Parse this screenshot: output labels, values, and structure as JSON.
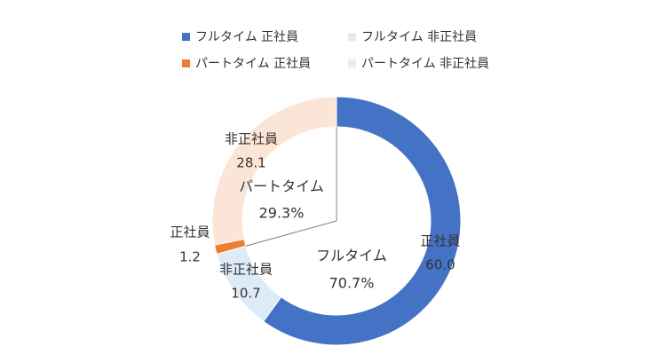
{
  "chart_data": {
    "type": "donut",
    "legend_position": "top",
    "legend": [
      {
        "label": "フルタイム 正社員",
        "color": "#4472C4"
      },
      {
        "label": "フルタイム 非正社員",
        "color": "#DEEBF7"
      },
      {
        "label": "パートタイム 正社員",
        "color": "#ED7D31"
      },
      {
        "label": "パートタイム 非正社員",
        "color": "#FBE5D6"
      }
    ],
    "outer_ring": [
      {
        "name": "フルタイム 正社員",
        "category": "正社員",
        "value": 60.0,
        "value_label": "60.0",
        "color": "#4472C4"
      },
      {
        "name": "フルタイム 非正社員",
        "category": "非正社員",
        "value": 10.7,
        "value_label": "10.7",
        "color": "#DEEBF7"
      },
      {
        "name": "パートタイム 正社員",
        "category": "正社員",
        "value": 1.2,
        "value_label": "1.2",
        "color": "#ED7D31"
      },
      {
        "name": "パートタイム 非正社員",
        "category": "非正社員",
        "value": 28.1,
        "value_label": "28.1",
        "color": "#FBE5D6"
      }
    ],
    "inner_groups": [
      {
        "label": "フルタイム",
        "value": 70.7,
        "value_label": "70.7%"
      },
      {
        "label": "パートタイム",
        "value": 29.3,
        "value_label": "29.3%"
      }
    ],
    "divider_color": "#7F7F7F"
  }
}
